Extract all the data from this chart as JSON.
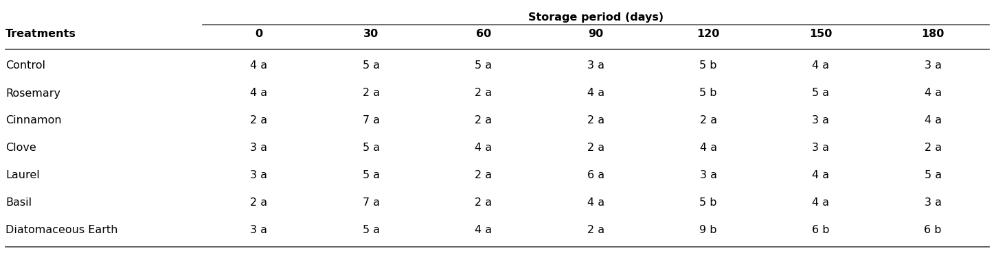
{
  "header_group": "Storage period (days)",
  "col_headers": [
    "0",
    "30",
    "60",
    "90",
    "120",
    "150",
    "180"
  ],
  "row_headers": [
    "Control",
    "Rosemary",
    "Cinnamon",
    "Clove",
    "Laurel",
    "Basil",
    "Diatomaceous Earth"
  ],
  "cell_data": [
    [
      "4 a",
      "5 a",
      "5 a",
      "3 a",
      "5 b",
      "4 a",
      "3 a"
    ],
    [
      "4 a",
      "2 a",
      "2 a",
      "4 a",
      "5 b",
      "5 a",
      "4 a"
    ],
    [
      "2 a",
      "7 a",
      "2 a",
      "2 a",
      "2 a",
      "3 a",
      "4 a"
    ],
    [
      "3 a",
      "5 a",
      "4 a",
      "2 a",
      "4 a",
      "3 a",
      "2 a"
    ],
    [
      "3 a",
      "5 a",
      "2 a",
      "6 a",
      "3 a",
      "4 a",
      "5 a"
    ],
    [
      "2 a",
      "7 a",
      "2 a",
      "4 a",
      "5 b",
      "4 a",
      "3 a"
    ],
    [
      "3 a",
      "5 a",
      "4 a",
      "2 a",
      "9 b",
      "6 b",
      "6 b"
    ]
  ],
  "background_color": "#ffffff",
  "text_color": "#000000",
  "header_fontsize": 11.5,
  "cell_fontsize": 11.5,
  "row_header_fontsize": 11.5,
  "line_color": "#555555",
  "treatments_label": "Treatments",
  "figsize": [
    14.5,
    4.04
  ],
  "dpi": 100
}
